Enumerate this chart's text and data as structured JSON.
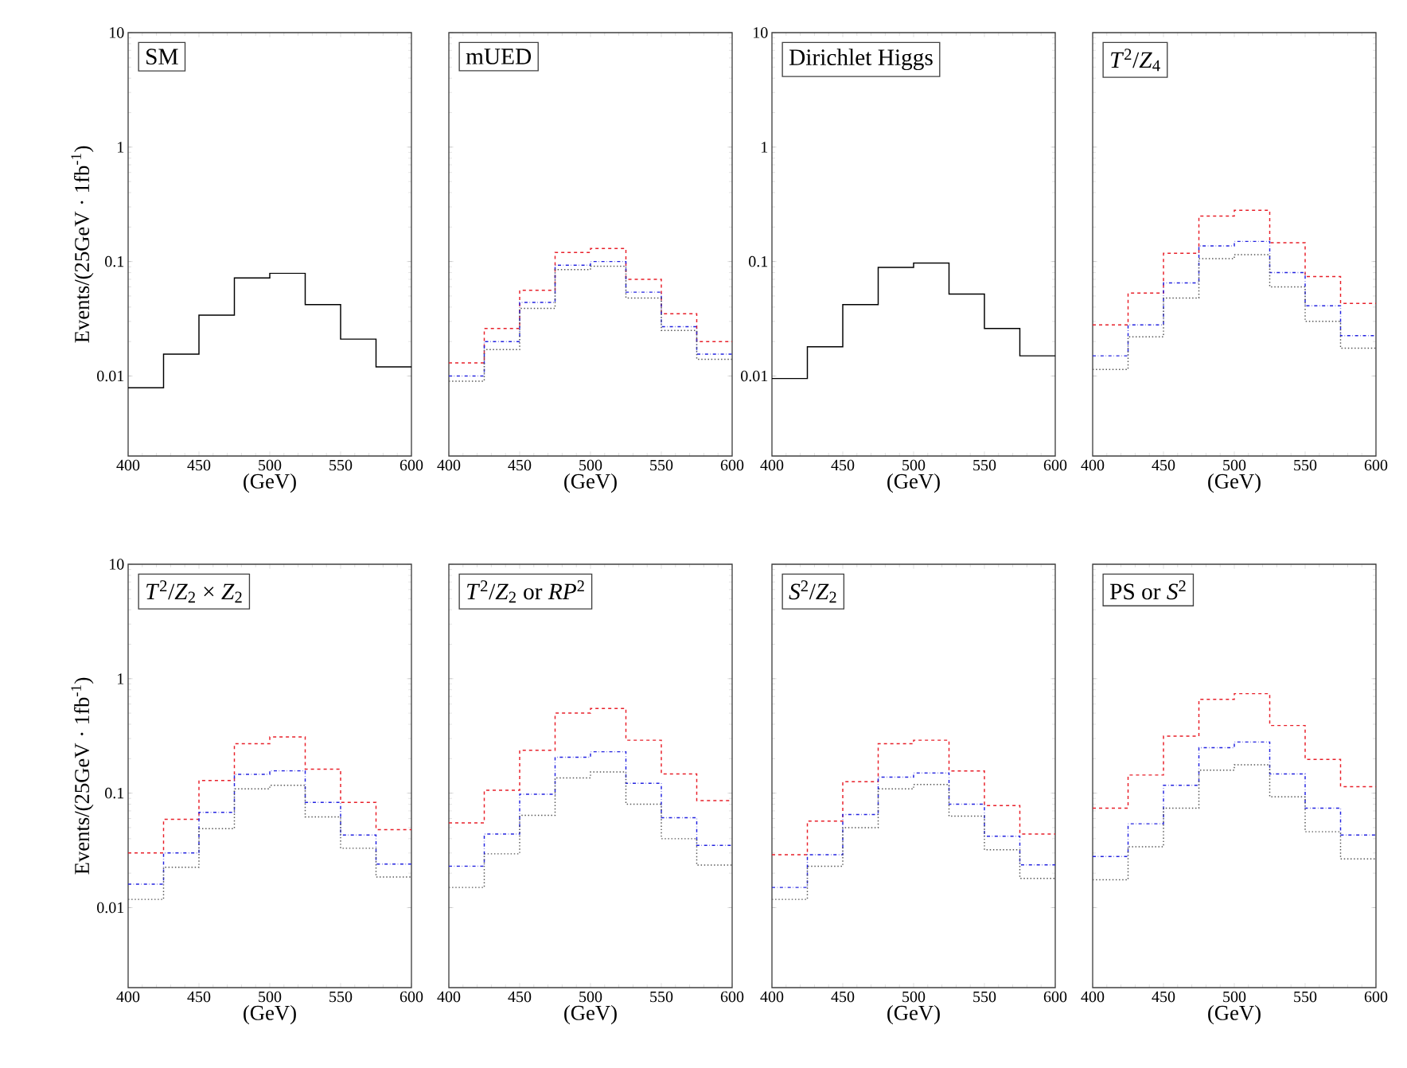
{
  "chart_data": [
    {
      "type": "histogram",
      "title": "SM",
      "xlabel": "(GeV)",
      "ylabel": "Events/(25GeV · 1fb$^{-1}$)",
      "log": true,
      "xlim": [
        400,
        600
      ],
      "xticks": [
        400,
        450,
        500,
        550,
        600
      ],
      "ylim": [
        0.002,
        10
      ],
      "yticks": [
        0.01,
        0.1,
        1,
        10
      ],
      "bins": [
        400,
        425,
        450,
        475,
        500,
        525,
        550,
        575,
        600
      ],
      "series": [
        {
          "color": "#000000",
          "line_style": "solid",
          "values": [
            0.0079,
            0.0155,
            0.034,
            0.072,
            0.079,
            0.042,
            0.021,
            0.012
          ]
        }
      ]
    },
    {
      "type": "histogram",
      "title": "mUED",
      "xlabel": "(GeV)",
      "log": true,
      "tick_labels": "x",
      "xlim": [
        400,
        600
      ],
      "xticks": [
        400,
        450,
        500,
        550,
        600
      ],
      "ylim": [
        0.002,
        10
      ],
      "yticks": [
        0.01,
        0.1,
        1,
        10
      ],
      "bins": [
        400,
        425,
        450,
        475,
        500,
        525,
        550,
        575,
        600
      ],
      "series": [
        {
          "color": "#e8202a",
          "line_style": "dashed",
          "values": [
            0.013,
            0.026,
            0.056,
            0.12,
            0.13,
            0.07,
            0.035,
            0.02
          ]
        },
        {
          "color": "#2424e0",
          "line_style": "dashdot",
          "values": [
            0.01,
            0.02,
            0.044,
            0.093,
            0.1,
            0.054,
            0.027,
            0.0155
          ]
        },
        {
          "color": "#555555",
          "line_style": "dotted",
          "values": [
            0.009,
            0.017,
            0.039,
            0.085,
            0.091,
            0.048,
            0.025,
            0.014
          ]
        }
      ]
    },
    {
      "type": "histogram",
      "title": "Dirichlet Higgs",
      "xlabel": "(GeV)",
      "log": true,
      "xlim": [
        400,
        600
      ],
      "xticks": [
        400,
        450,
        500,
        550,
        600
      ],
      "ylim": [
        0.002,
        10
      ],
      "yticks": [
        0.01,
        0.1,
        1,
        10
      ],
      "bins": [
        400,
        425,
        450,
        475,
        500,
        525,
        550,
        575,
        600
      ],
      "series": [
        {
          "color": "#000000",
          "line_style": "solid",
          "values": [
            0.0095,
            0.018,
            0.042,
            0.089,
            0.097,
            0.052,
            0.026,
            0.015
          ]
        }
      ]
    },
    {
      "type": "histogram",
      "title": "*T*$^{2}$/*Z*$_{4}$",
      "xlabel": "(GeV)",
      "log": true,
      "tick_labels": "x",
      "xlim": [
        400,
        600
      ],
      "xticks": [
        400,
        450,
        500,
        550,
        600
      ],
      "ylim": [
        0.002,
        10
      ],
      "yticks": [
        0.01,
        0.1,
        1,
        10
      ],
      "bins": [
        400,
        425,
        450,
        475,
        500,
        525,
        550,
        575,
        600
      ],
      "series": [
        {
          "color": "#e8202a",
          "line_style": "dashed",
          "values": [
            0.028,
            0.053,
            0.118,
            0.25,
            0.28,
            0.146,
            0.074,
            0.043
          ]
        },
        {
          "color": "#2424e0",
          "line_style": "dashdot",
          "values": [
            0.015,
            0.028,
            0.065,
            0.137,
            0.15,
            0.08,
            0.041,
            0.0225
          ]
        },
        {
          "color": "#555555",
          "line_style": "dotted",
          "values": [
            0.0114,
            0.022,
            0.048,
            0.106,
            0.115,
            0.06,
            0.03,
            0.0175
          ]
        }
      ]
    },
    {
      "type": "histogram",
      "title": "*T*$^{2}$/*Z*$_{2}$ × *Z*$_{2}$",
      "xlabel": "(GeV)",
      "ylabel": "Events/(25GeV · 1fb$^{-1}$)",
      "log": true,
      "xlim": [
        400,
        600
      ],
      "xticks": [
        400,
        450,
        500,
        550,
        600
      ],
      "ylim": [
        0.002,
        10
      ],
      "yticks": [
        0.01,
        0.1,
        1,
        10
      ],
      "bins": [
        400,
        425,
        450,
        475,
        500,
        525,
        550,
        575,
        600
      ],
      "series": [
        {
          "color": "#e8202a",
          "line_style": "dashed",
          "values": [
            0.03,
            0.059,
            0.129,
            0.27,
            0.31,
            0.162,
            0.083,
            0.048
          ]
        },
        {
          "color": "#2424e0",
          "line_style": "dashdot",
          "values": [
            0.016,
            0.03,
            0.068,
            0.146,
            0.157,
            0.083,
            0.043,
            0.024
          ]
        },
        {
          "color": "#555555",
          "line_style": "dotted",
          "values": [
            0.0118,
            0.0225,
            0.049,
            0.109,
            0.117,
            0.062,
            0.033,
            0.0185
          ]
        }
      ]
    },
    {
      "type": "histogram",
      "title": "*T*$^{2}$/*Z*$_{2}$ or *RP*$^{2}$",
      "xlabel": "(GeV)",
      "log": true,
      "tick_labels": "x",
      "xlim": [
        400,
        600
      ],
      "xticks": [
        400,
        450,
        500,
        550,
        600
      ],
      "ylim": [
        0.002,
        10
      ],
      "yticks": [
        0.01,
        0.1,
        1,
        10
      ],
      "bins": [
        400,
        425,
        450,
        475,
        500,
        525,
        550,
        575,
        600
      ],
      "series": [
        {
          "color": "#e8202a",
          "line_style": "dashed",
          "values": [
            0.055,
            0.106,
            0.237,
            0.5,
            0.55,
            0.29,
            0.147,
            0.086
          ]
        },
        {
          "color": "#2424e0",
          "line_style": "dashdot",
          "values": [
            0.023,
            0.044,
            0.098,
            0.206,
            0.23,
            0.122,
            0.061,
            0.035
          ]
        },
        {
          "color": "#555555",
          "line_style": "dotted",
          "values": [
            0.015,
            0.0295,
            0.064,
            0.136,
            0.153,
            0.08,
            0.04,
            0.0235
          ]
        }
      ]
    },
    {
      "type": "histogram",
      "title": "*S*$^{2}$/*Z*$_{2}$",
      "xlabel": "(GeV)",
      "log": true,
      "tick_labels": "x",
      "xlim": [
        400,
        600
      ],
      "xticks": [
        400,
        450,
        500,
        550,
        600
      ],
      "ylim": [
        0.002,
        10
      ],
      "yticks": [
        0.01,
        0.1,
        1,
        10
      ],
      "bins": [
        400,
        425,
        450,
        475,
        500,
        525,
        550,
        575,
        600
      ],
      "series": [
        {
          "color": "#e8202a",
          "line_style": "dashed",
          "values": [
            0.029,
            0.057,
            0.126,
            0.27,
            0.29,
            0.156,
            0.078,
            0.044
          ]
        },
        {
          "color": "#2424e0",
          "line_style": "dashdot",
          "values": [
            0.015,
            0.029,
            0.065,
            0.138,
            0.15,
            0.08,
            0.042,
            0.0236
          ]
        },
        {
          "color": "#555555",
          "line_style": "dotted",
          "values": [
            0.0118,
            0.023,
            0.05,
            0.109,
            0.119,
            0.063,
            0.032,
            0.018
          ]
        }
      ]
    },
    {
      "type": "histogram",
      "title": "PS or *S*$^{2}$",
      "xlabel": "(GeV)",
      "log": true,
      "tick_labels": "x",
      "xlim": [
        400,
        600
      ],
      "xticks": [
        400,
        450,
        500,
        550,
        600
      ],
      "ylim": [
        0.002,
        10
      ],
      "yticks": [
        0.01,
        0.1,
        1,
        10
      ],
      "bins": [
        400,
        425,
        450,
        475,
        500,
        525,
        550,
        575,
        600
      ],
      "series": [
        {
          "color": "#e8202a",
          "line_style": "dashed",
          "values": [
            0.074,
            0.144,
            0.315,
            0.66,
            0.74,
            0.39,
            0.197,
            0.114
          ]
        },
        {
          "color": "#2424e0",
          "line_style": "dashdot",
          "values": [
            0.028,
            0.054,
            0.117,
            0.25,
            0.28,
            0.147,
            0.074,
            0.043
          ]
        },
        {
          "color": "#555555",
          "line_style": "dotted",
          "values": [
            0.0175,
            0.034,
            0.074,
            0.159,
            0.177,
            0.093,
            0.046,
            0.0266
          ]
        }
      ]
    }
  ]
}
